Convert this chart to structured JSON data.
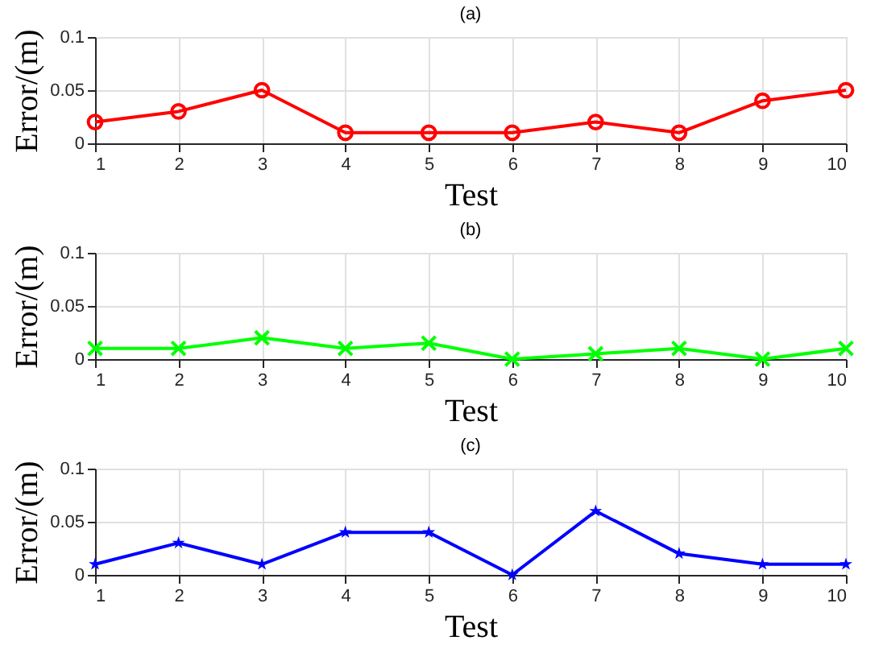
{
  "chart_data": [
    {
      "type": "line",
      "title": "(a)",
      "xlabel": "Test",
      "ylabel": "Error/(m)",
      "x": [
        1,
        2,
        3,
        4,
        5,
        6,
        7,
        8,
        9,
        10
      ],
      "xlim": [
        1,
        10
      ],
      "xticks": [
        1,
        2,
        3,
        4,
        5,
        6,
        7,
        8,
        9,
        10
      ],
      "ylim": [
        0,
        0.1
      ],
      "yticks": [
        0,
        0.05,
        0.1
      ],
      "grid": true,
      "marker": "circle",
      "line_style": "solid",
      "series": [
        {
          "color": "#ff0000",
          "values": [
            0.02,
            0.03,
            0.05,
            0.01,
            0.01,
            0.01,
            0.02,
            0.01,
            0.04,
            0.05
          ]
        }
      ]
    },
    {
      "type": "line",
      "title": "(b)",
      "xlabel": "Test",
      "ylabel": "Error/(m)",
      "x": [
        1,
        2,
        3,
        4,
        5,
        6,
        7,
        8,
        9,
        10
      ],
      "xlim": [
        1,
        10
      ],
      "xticks": [
        1,
        2,
        3,
        4,
        5,
        6,
        7,
        8,
        9,
        10
      ],
      "ylim": [
        0,
        0.1
      ],
      "yticks": [
        0,
        0.05,
        0.1
      ],
      "grid": true,
      "marker": "cross",
      "line_style": "solid",
      "series": [
        {
          "color": "#00ff00",
          "values": [
            0.01,
            0.01,
            0.02,
            0.01,
            0.015,
            0,
            0.005,
            0.01,
            0,
            0.01
          ]
        }
      ]
    },
    {
      "type": "line",
      "title": "(c)",
      "xlabel": "Test",
      "ylabel": "Error/(m)",
      "x": [
        1,
        2,
        3,
        4,
        5,
        6,
        7,
        8,
        9,
        10
      ],
      "xlim": [
        1,
        10
      ],
      "xticks": [
        1,
        2,
        3,
        4,
        5,
        6,
        7,
        8,
        9,
        10
      ],
      "ylim": [
        0,
        0.1
      ],
      "yticks": [
        0,
        0.05,
        0.1
      ],
      "grid": true,
      "marker": "star",
      "line_style": "solid",
      "series": [
        {
          "color": "#0000ff",
          "values": [
            0.01,
            0.03,
            0.01,
            0.04,
            0.04,
            0,
            0.06,
            0.02,
            0.01,
            0.01
          ]
        }
      ]
    }
  ]
}
